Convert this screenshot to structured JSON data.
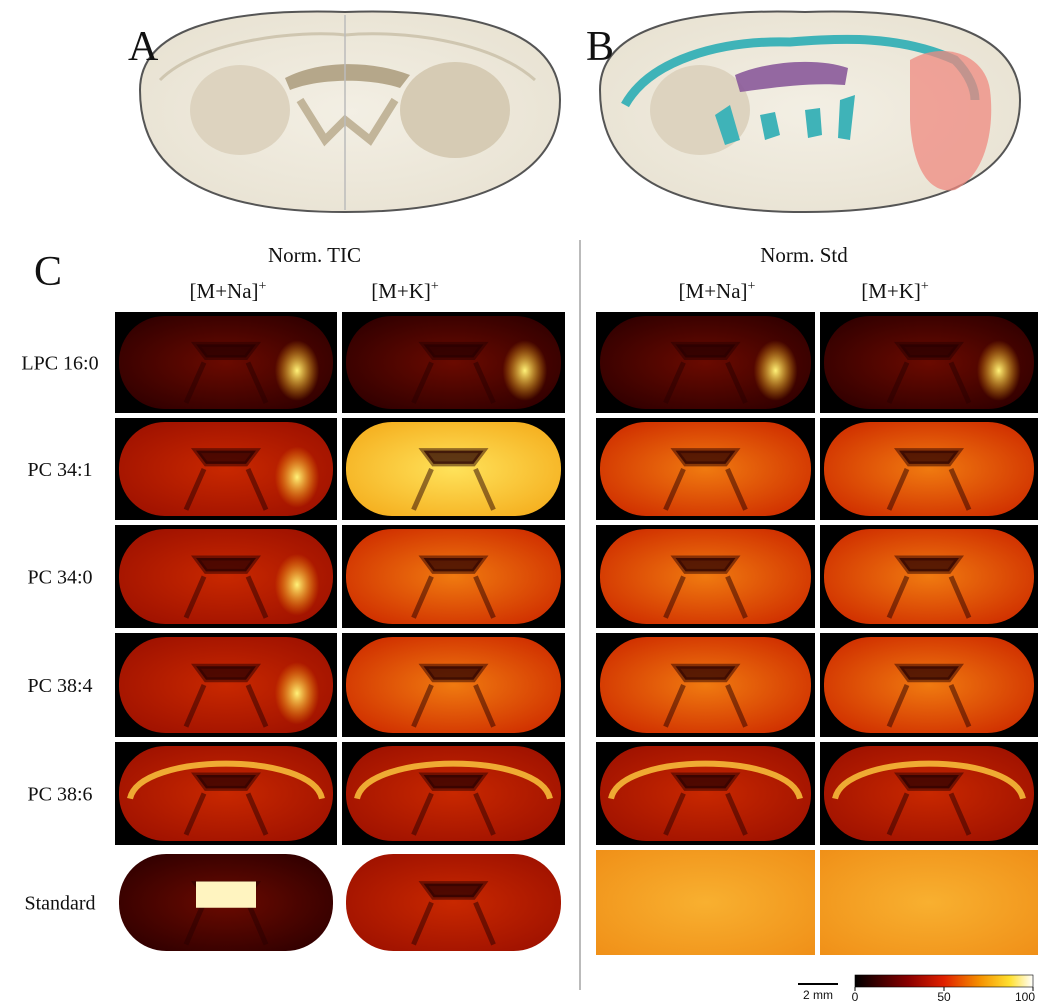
{
  "panels": {
    "a": {
      "label": "A"
    },
    "b": {
      "label": "B"
    },
    "c": {
      "label": "C"
    }
  },
  "groups": [
    {
      "title": "Norm. TIC",
      "columns": [
        {
          "base": "[M+Na]",
          "sup": "+"
        },
        {
          "base": "[M+K]",
          "sup": "+"
        }
      ]
    },
    {
      "title": "Norm. Std",
      "columns": [
        {
          "base": "[M+Na]",
          "sup": "+"
        },
        {
          "base": "[M+K]",
          "sup": "+"
        }
      ]
    }
  ],
  "rows": [
    "LPC 16:0",
    "PC 34:1",
    "PC 34:0",
    "PC 38:4",
    "PC 38:6",
    "Standard"
  ],
  "scale_bar": {
    "label": "2 mm"
  },
  "colorbar": {
    "ticks": [
      0,
      50,
      100
    ]
  }
}
